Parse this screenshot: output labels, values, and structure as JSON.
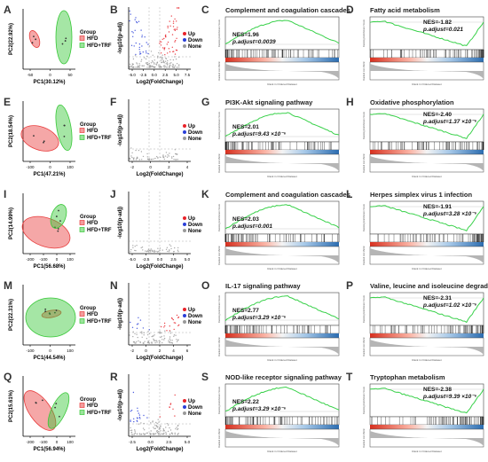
{
  "figure": {
    "rows": [
      {
        "pca": {
          "letter": "A",
          "xlabel": "PC1(30.12%)",
          "ylabel": "PC2(22.92%)",
          "xticks": [
            "-50",
            "0",
            "50"
          ],
          "legend_title": "Group",
          "groups": [
            "HFD",
            "HFD+TRF"
          ]
        },
        "volcano": {
          "letter": "B",
          "xlabel": "Log2(FoldChange)",
          "ylabel": "-log10(p-adj)",
          "xticks": [
            "-5.0",
            "-2.5",
            "0.0",
            "2.5",
            "5.0",
            "7.5"
          ],
          "legend": [
            "Up",
            "Down",
            "None"
          ]
        },
        "gsea": [
          {
            "letter": "C",
            "title": "Complement and coagulation cascades",
            "nes": "NES=1.96",
            "padj": "p.adjust=0.0039",
            "direction": "up"
          },
          {
            "letter": "D",
            "title": "Fatty acid metabolism",
            "nes": "NES=-1.82",
            "padj": "p.adjust=0.021",
            "direction": "down"
          }
        ]
      },
      {
        "pca": {
          "letter": "E",
          "xlabel": "PC1(47.21%)",
          "ylabel": "PC2(18.54%)",
          "xticks": [
            "-100",
            "0",
            "100"
          ],
          "legend_title": "Group",
          "groups": [
            "HFD",
            "HFD+TRF"
          ]
        },
        "volcano": {
          "letter": "F",
          "xlabel": "Log2(FoldChange)",
          "ylabel": "-log10(p-adj)",
          "xticks": [
            "-2",
            "0",
            "2",
            "4"
          ],
          "legend": [
            "Up",
            "Down",
            "None"
          ]
        },
        "gsea": [
          {
            "letter": "G",
            "title": "PI3K-Akt signaling pathway",
            "nes": "NES=2.01",
            "padj": "p.adjust=9.43 ×10⁻⁶",
            "direction": "up"
          },
          {
            "letter": "H",
            "title": "Oxidative phosphorylation",
            "nes": "NES=-2.40",
            "padj": "p.adjust=1.37 ×10⁻⁶",
            "direction": "down"
          }
        ]
      },
      {
        "pca": {
          "letter": "I",
          "xlabel": "PC1(56.68%)",
          "ylabel": "PC2(14.99%)",
          "xticks": [
            "-200",
            "-100",
            "0",
            "100"
          ],
          "legend_title": "Group",
          "groups": [
            "HFD",
            "HFD+TRF"
          ]
        },
        "volcano": {
          "letter": "J",
          "xlabel": "Log2(FoldChange)",
          "ylabel": "-log10(p-adj)",
          "xticks": [
            "-5.0",
            "-2.5",
            "0.0",
            "2.5",
            "5.0"
          ],
          "legend": [
            "Up",
            "Down",
            "None"
          ]
        },
        "gsea": [
          {
            "letter": "K",
            "title": "Complement and coagulation cascades",
            "nes": "NES=2.03",
            "padj": "p.adjust=0.001",
            "direction": "up"
          },
          {
            "letter": "L",
            "title": "Herpes simplex virus 1 infection",
            "nes": "NES=-1.91",
            "padj": "p.adjust=3.28 ×10⁻⁶",
            "direction": "down"
          }
        ]
      },
      {
        "pca": {
          "letter": "M",
          "xlabel": "PC1(44.54%)",
          "ylabel": "PC2(22.31%)",
          "xticks": [
            "-100",
            "0",
            "100"
          ],
          "legend_title": "Group",
          "groups": [
            "HFD",
            "HFD+TRF"
          ]
        },
        "volcano": {
          "letter": "N",
          "xlabel": "Log2(FoldChange)",
          "ylabel": "-log10(p-adj)",
          "xticks": [
            "-2",
            "0",
            "2",
            "4",
            "6"
          ],
          "legend": [
            "Up",
            "Down",
            "None"
          ]
        },
        "gsea": [
          {
            "letter": "O",
            "title": "IL-17 signaling pathway",
            "nes": "NES=2.77",
            "padj": "p.adjust=3.29 ×10⁻⁶",
            "direction": "up"
          },
          {
            "letter": "P",
            "title": "Valine, leucine and isoleucine degradation",
            "nes": "NES=-2.31",
            "padj": "p.adjust=1.02 ×10⁻⁶",
            "direction": "down"
          }
        ]
      },
      {
        "pca": {
          "letter": "Q",
          "xlabel": "PC1(56.94%)",
          "ylabel": "PC2(15.61%)",
          "xticks": [
            "-200",
            "-100",
            "0",
            "100"
          ],
          "legend_title": "Group",
          "groups": [
            "HFD",
            "HFD+TRF"
          ]
        },
        "volcano": {
          "letter": "R",
          "xlabel": "Log2(FoldChange)",
          "ylabel": "-log10(p-adj)",
          "xticks": [
            "-2.5",
            "0.0",
            "2.5",
            "5.0"
          ],
          "legend": [
            "Up",
            "Down",
            "None"
          ]
        },
        "gsea": [
          {
            "letter": "S",
            "title": "NOD-like receptor signaling pathway",
            "nes": "NES=2.22",
            "padj": "p.adjust=3.29 ×10⁻⁶",
            "direction": "up"
          },
          {
            "letter": "T",
            "title": "Tryptophan metabolism",
            "nes": "NES=-2.38",
            "padj": "p.adjust=9.39 ×10⁻⁶",
            "direction": "down"
          }
        ]
      }
    ],
    "gsea_axis_labels": {
      "es": "Running Enrichment Score",
      "rank": "Ranked List Metric",
      "x": "Rank in Ordered Dataset"
    },
    "colors": {
      "hfd": "#e83c3c",
      "trf": "#37c837",
      "up": "#e8232a",
      "down": "#2a3fd8",
      "none": "#9a9a9a",
      "es_line": "#39d14a"
    }
  }
}
